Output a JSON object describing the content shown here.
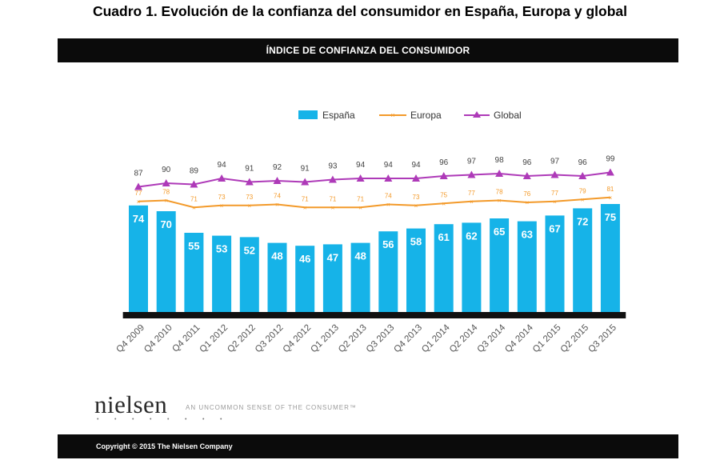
{
  "page_title": "Cuadro 1. Evolución de la confianza del consumidor en España, Europa y global",
  "header_title": "ÍNDICE DE CONFIANZA DEL CONSUMIDOR",
  "brand": "nielsen",
  "brand_dots": "• • • • • • • •",
  "tagline": "AN UNCOMMON SENSE OF THE CONSUMER™",
  "copyright": "Copyright © 2015 The Nielsen Company",
  "colors": {
    "espana": "#16b3e8",
    "europa": "#f39a2a",
    "global": "#ae3ab8",
    "baseline": "#111111"
  },
  "chart_data": {
    "type": "bar",
    "title": "ÍNDICE DE CONFIANZA DEL CONSUMIDOR",
    "categories": [
      "Q4 2009",
      "Q4 2010",
      "Q4 2011",
      "Q1 2012",
      "Q2 2012",
      "Q3 2012",
      "Q4 2012",
      "Q1 2013",
      "Q2 2013",
      "Q3 2013",
      "Q4 2013",
      "Q1 2014",
      "Q2 2014",
      "Q3 2014",
      "Q4 2014",
      "Q1 2015",
      "Q2 2015",
      "Q3 2015"
    ],
    "series": [
      {
        "name": "España",
        "type": "bar",
        "values": [
          74,
          70,
          55,
          53,
          52,
          48,
          46,
          47,
          48,
          56,
          58,
          61,
          62,
          65,
          63,
          67,
          72,
          75
        ]
      },
      {
        "name": "Europa",
        "type": "line",
        "values": [
          77,
          78,
          71,
          73,
          73,
          74,
          71,
          71,
          71,
          74,
          73,
          75,
          77,
          78,
          76,
          77,
          79,
          81
        ]
      },
      {
        "name": "Global",
        "type": "line",
        "values": [
          87,
          90,
          89,
          94,
          91,
          92,
          91,
          93,
          94,
          94,
          94,
          96,
          97,
          98,
          96,
          97,
          96,
          99
        ]
      }
    ],
    "legend": [
      "España",
      "Europa",
      "Global"
    ],
    "legend_position": "top-center"
  }
}
